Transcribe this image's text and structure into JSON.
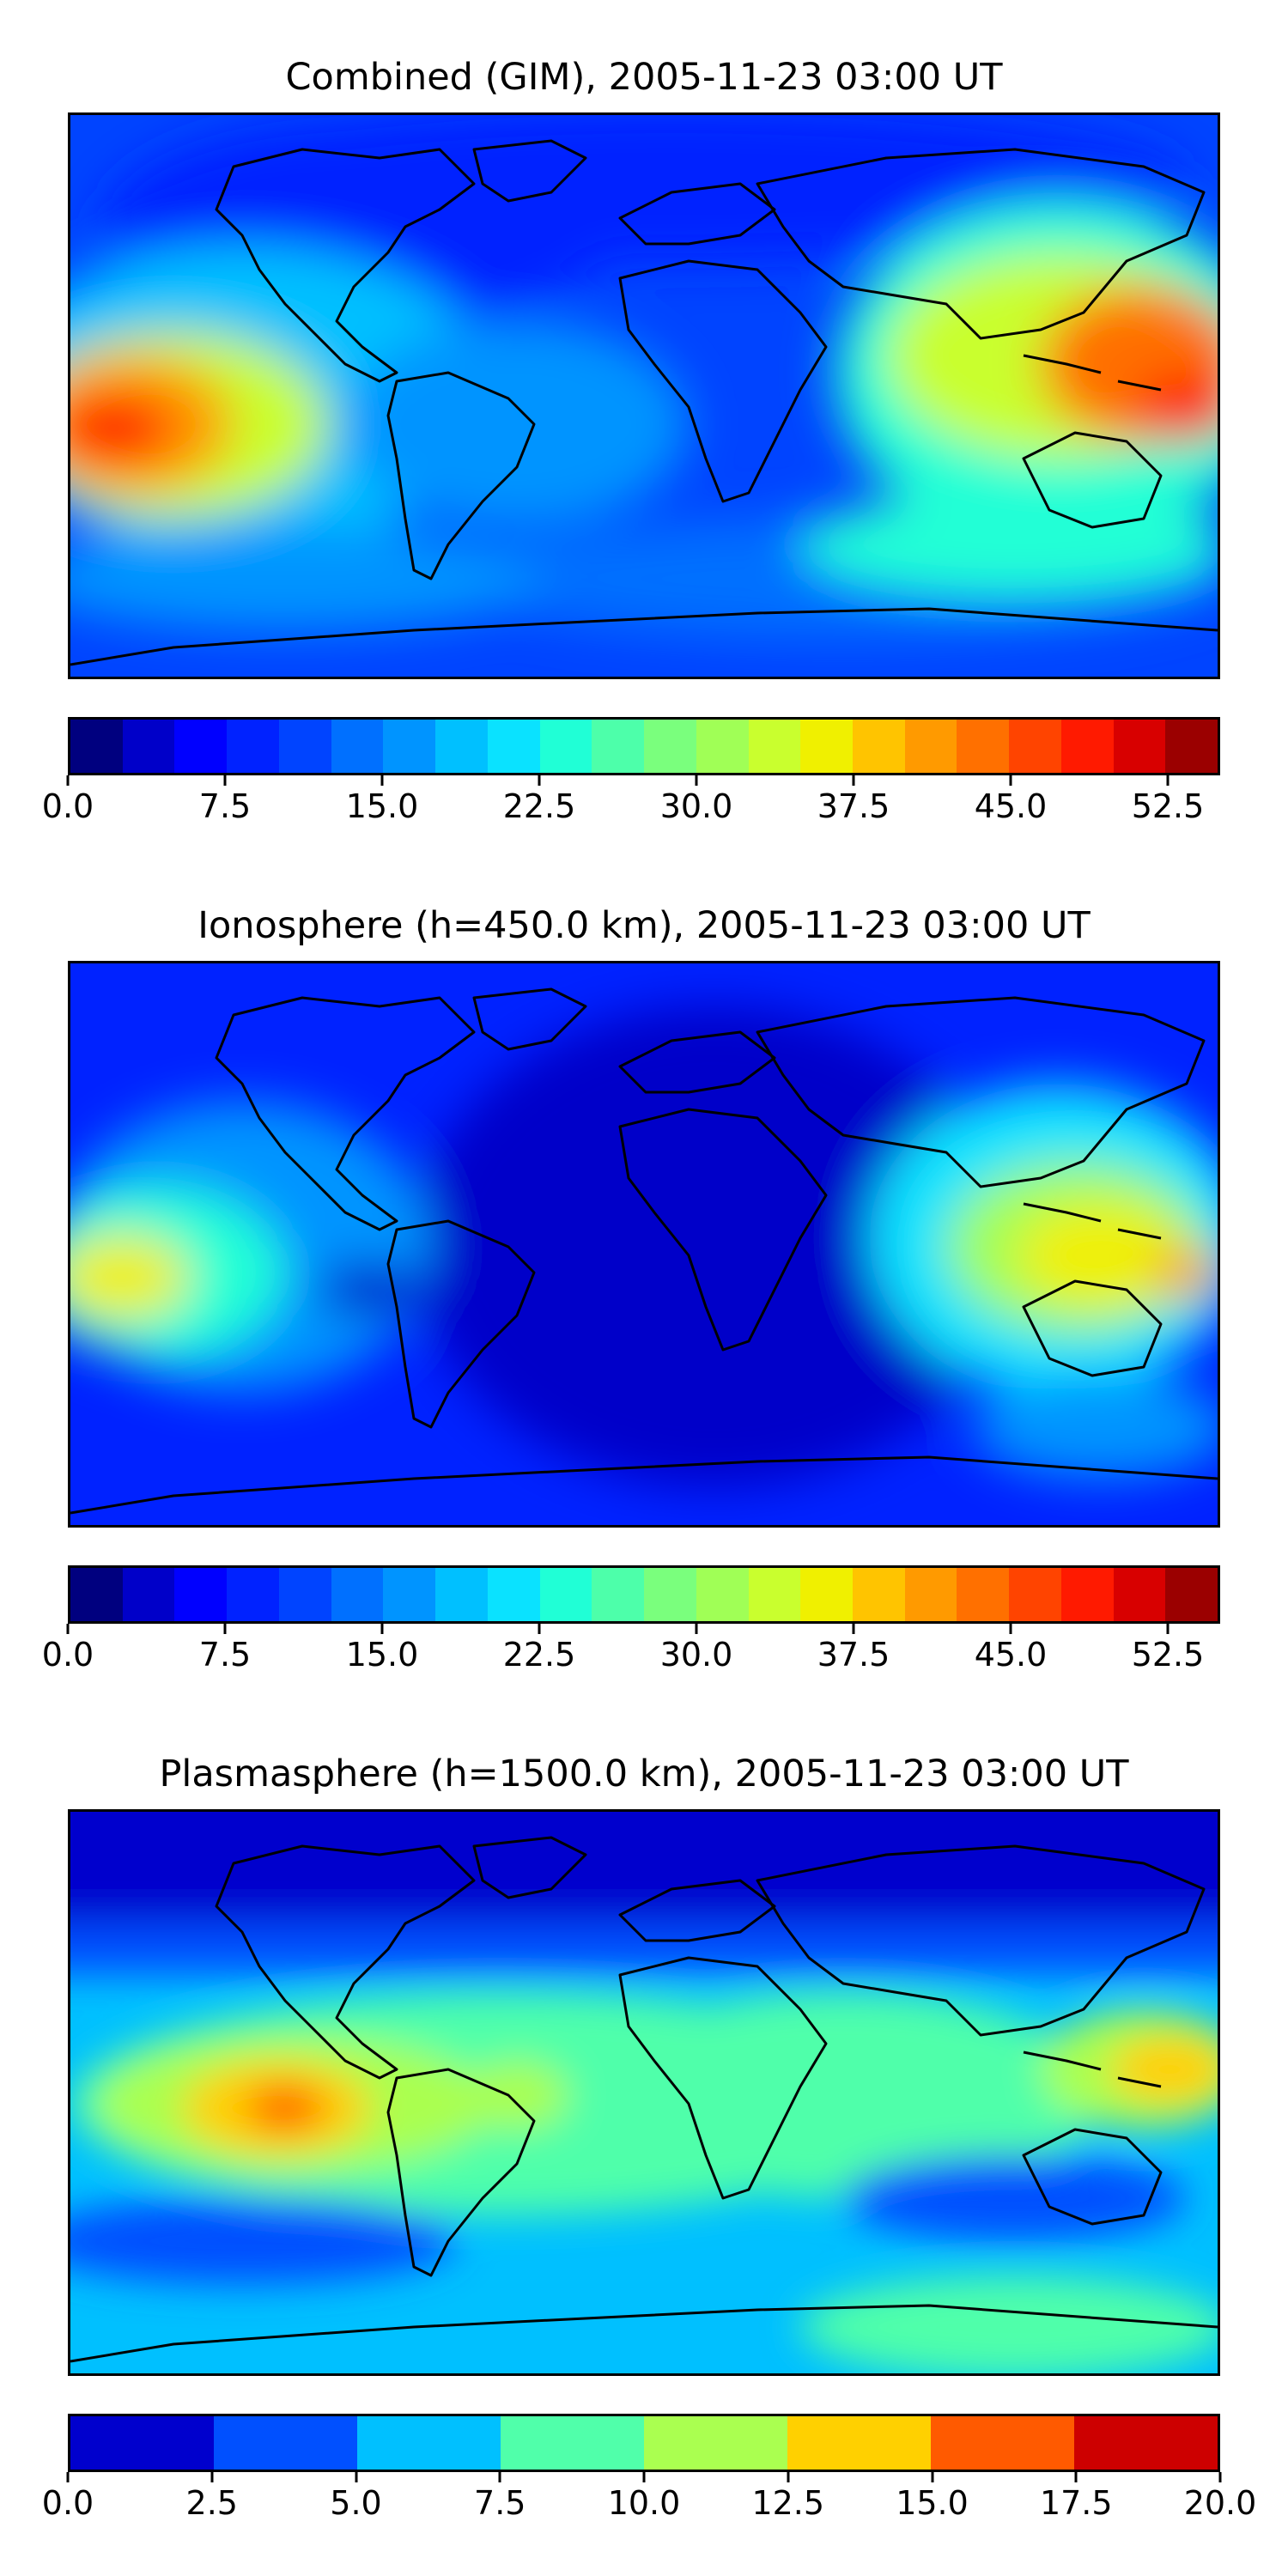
{
  "panels": [
    {
      "title": "Combined (GIM), 2005-11-23 03:00 UT",
      "colorbar": {
        "colors": [
          "#00007f",
          "#0000c9",
          "#0000ff",
          "#0022ff",
          "#0044ff",
          "#0070ff",
          "#0094ff",
          "#00c0ff",
          "#0ae2ff",
          "#20ffd6",
          "#4dffaa",
          "#7aff7d",
          "#a0ff56",
          "#c9ff2e",
          "#f0f000",
          "#ffc400",
          "#ff9a00",
          "#ff7000",
          "#ff4400",
          "#ff1a00",
          "#d80000",
          "#9b0000"
        ],
        "ticks": [
          "0.0",
          "7.5",
          "15.0",
          "22.5",
          "30.0",
          "37.5",
          "45.0",
          "52.5"
        ],
        "range": [
          0,
          55
        ]
      }
    },
    {
      "title": "Ionosphere  (h=450.0 km), 2005-11-23 03:00 UT",
      "colorbar": {
        "colors": [
          "#00007f",
          "#0000c9",
          "#0000ff",
          "#0022ff",
          "#0044ff",
          "#0070ff",
          "#0094ff",
          "#00c0ff",
          "#0ae2ff",
          "#20ffd6",
          "#4dffaa",
          "#7aff7d",
          "#a0ff56",
          "#c9ff2e",
          "#f0f000",
          "#ffc400",
          "#ff9a00",
          "#ff7000",
          "#ff4400",
          "#ff1a00",
          "#d80000",
          "#9b0000"
        ],
        "ticks": [
          "0.0",
          "7.5",
          "15.0",
          "22.5",
          "30.0",
          "37.5",
          "45.0",
          "52.5"
        ],
        "range": [
          0,
          55
        ]
      }
    },
    {
      "title": "Plasmasphere (h=1500.0 km), 2005-11-23 03:00 UT",
      "colorbar": {
        "colors": [
          "#0000cd",
          "#0050ff",
          "#00c0ff",
          "#50ffaa",
          "#aaff50",
          "#ffd000",
          "#ff5a00",
          "#cd0000"
        ],
        "ticks": [
          "0.0",
          "2.5",
          "5.0",
          "7.5",
          "10.0",
          "12.5",
          "15.0",
          "17.5",
          "20.0"
        ],
        "range": [
          0,
          20
        ]
      }
    }
  ]
}
